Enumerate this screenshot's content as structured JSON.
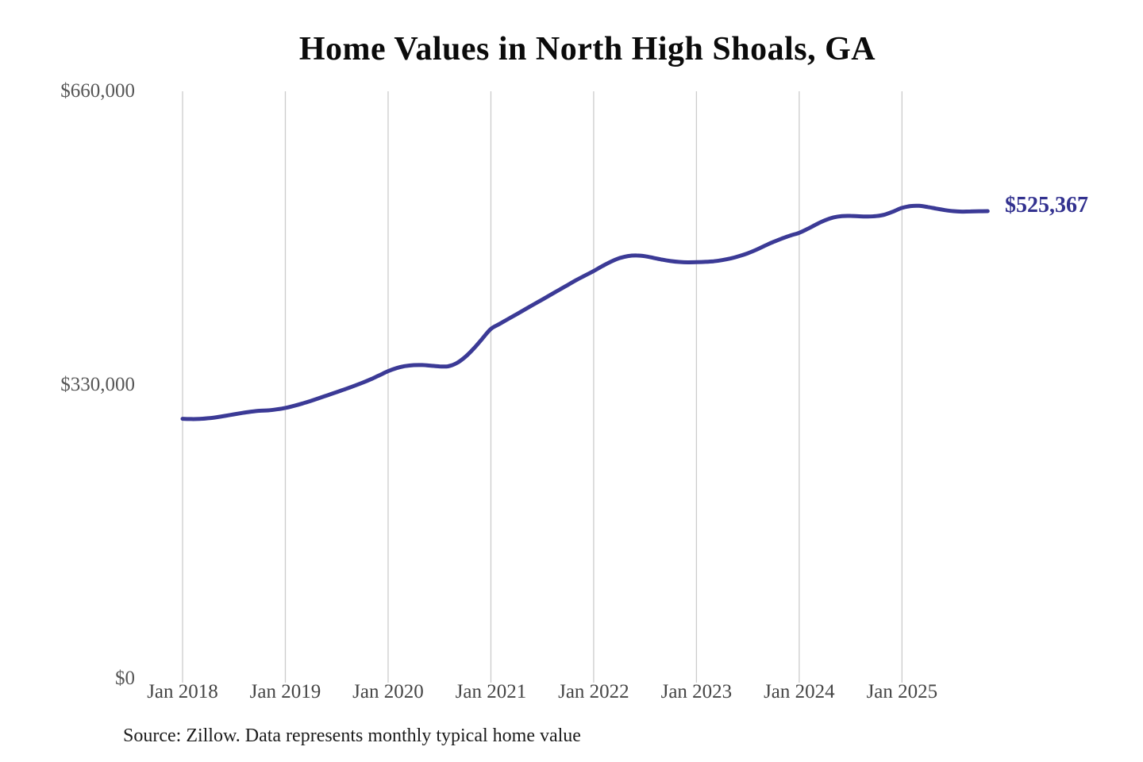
{
  "chart_data": {
    "type": "line",
    "title": "Home Values in North High Shoals, GA",
    "xlabel": "",
    "ylabel": "",
    "ylim": [
      0,
      660000
    ],
    "grid": "vertical-only",
    "line_color": "#3b3a96",
    "grid_color": "#cccccc",
    "end_label": "$525,367",
    "end_value": 525367,
    "source": "Source: Zillow. Data represents monthly typical home value",
    "y_ticks": [
      {
        "label": "$660,000",
        "value": 660000
      },
      {
        "label": "$330,000",
        "value": 330000
      },
      {
        "label": "$0",
        "value": 0
      }
    ],
    "x_ticks": [
      {
        "label": "Jan 2018",
        "month": 0
      },
      {
        "label": "Jan 2019",
        "month": 12
      },
      {
        "label": "Jan 2020",
        "month": 24
      },
      {
        "label": "Jan 2021",
        "month": 36
      },
      {
        "label": "Jan 2022",
        "month": 48
      },
      {
        "label": "Jan 2023",
        "month": 60
      },
      {
        "label": "Jan 2024",
        "month": 72
      },
      {
        "label": "Jan 2025",
        "month": 84
      }
    ],
    "x": [
      "2018-01",
      "2018-02",
      "2018-03",
      "2018-04",
      "2018-05",
      "2018-06",
      "2018-07",
      "2018-08",
      "2018-09",
      "2018-10",
      "2018-11",
      "2018-12",
      "2019-01",
      "2019-02",
      "2019-03",
      "2019-04",
      "2019-05",
      "2019-06",
      "2019-07",
      "2019-08",
      "2019-09",
      "2019-10",
      "2019-11",
      "2019-12",
      "2020-01",
      "2020-02",
      "2020-03",
      "2020-04",
      "2020-05",
      "2020-06",
      "2020-07",
      "2020-08",
      "2020-09",
      "2020-10",
      "2020-11",
      "2020-12",
      "2021-01",
      "2021-02",
      "2021-03",
      "2021-04",
      "2021-05",
      "2021-06",
      "2021-07",
      "2021-08",
      "2021-09",
      "2021-10",
      "2021-11",
      "2021-12",
      "2022-01",
      "2022-02",
      "2022-03",
      "2022-04",
      "2022-05",
      "2022-06",
      "2022-07",
      "2022-08",
      "2022-09",
      "2022-10",
      "2022-11",
      "2022-12",
      "2023-01",
      "2023-02",
      "2023-03",
      "2023-04",
      "2023-05",
      "2023-06",
      "2023-07",
      "2023-08",
      "2023-09",
      "2023-10",
      "2023-11",
      "2023-12",
      "2024-01",
      "2024-02",
      "2024-03",
      "2024-04",
      "2024-05",
      "2024-06",
      "2024-07",
      "2024-08",
      "2024-09",
      "2024-10",
      "2024-11",
      "2024-12",
      "2025-01",
      "2025-02",
      "2025-03",
      "2025-04",
      "2025-05",
      "2025-06",
      "2025-07",
      "2025-08",
      "2025-09",
      "2025-10",
      "2025-11"
    ],
    "values": [
      292000,
      291700,
      291900,
      292600,
      293800,
      295300,
      297000,
      298600,
      300000,
      301000,
      301500,
      302600,
      304200,
      306500,
      309200,
      312200,
      315400,
      318700,
      322000,
      325400,
      328800,
      332500,
      336500,
      341000,
      345500,
      349000,
      351200,
      352300,
      352400,
      351700,
      350900,
      351000,
      354500,
      361500,
      371000,
      382000,
      393000,
      398500,
      404000,
      409500,
      415000,
      420500,
      426000,
      431500,
      437000,
      442500,
      448000,
      453000,
      458000,
      463500,
      468500,
      472500,
      474800,
      475500,
      474700,
      472800,
      470800,
      469200,
      468200,
      467800,
      468000,
      468300,
      469000,
      470300,
      472200,
      474800,
      478000,
      482000,
      486500,
      490800,
      494600,
      498000,
      501000,
      505500,
      510500,
      515000,
      518300,
      519800,
      520000,
      519500,
      519300,
      519800,
      521500,
      525000,
      529000,
      531000,
      531300,
      530000,
      528200,
      526500,
      525300,
      524800,
      525000,
      525200,
      525367
    ]
  }
}
